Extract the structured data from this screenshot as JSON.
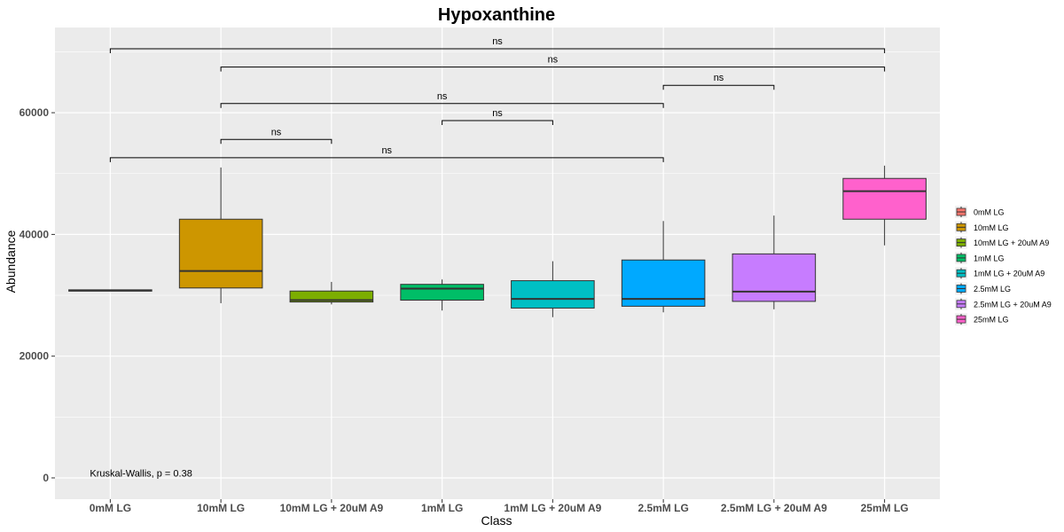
{
  "chart_data": {
    "type": "box",
    "title": "Hypoxanthine",
    "xlabel": "Class",
    "ylabel": "Abundance",
    "ylim": [
      -3500,
      74000
    ],
    "yticks": [
      0,
      20000,
      40000,
      60000
    ],
    "ytick_labels": [
      "0",
      "20000",
      "40000",
      "60000"
    ],
    "categories": [
      "0mM LG",
      "10mM LG",
      "10mM LG + 20uM A9",
      "1mM LG",
      "1mM LG + 20uM A9",
      "2.5mM LG",
      "2.5mM LG + 20uM A9",
      "25mM LG"
    ],
    "series": [
      {
        "name": "0mM LG",
        "color": "#F8766D",
        "min": 30700,
        "q1": 30700,
        "median": 30800,
        "q3": 30900,
        "max": 30900
      },
      {
        "name": "10mM LG",
        "color": "#CD9600",
        "min": 28700,
        "q1": 31200,
        "median": 34000,
        "q3": 42500,
        "max": 51000
      },
      {
        "name": "10mM LG + 20uM A9",
        "color": "#7CAE00",
        "min": 28500,
        "q1": 28900,
        "median": 29200,
        "q3": 30700,
        "max": 32200
      },
      {
        "name": "1mM LG",
        "color": "#00BE67",
        "min": 27500,
        "q1": 29200,
        "median": 31100,
        "q3": 31800,
        "max": 32600
      },
      {
        "name": "1mM LG + 20uM A9",
        "color": "#00BFC4",
        "min": 26400,
        "q1": 27900,
        "median": 29400,
        "q3": 32400,
        "max": 35600
      },
      {
        "name": "2.5mM LG",
        "color": "#00A9FF",
        "min": 27200,
        "q1": 28200,
        "median": 29400,
        "q3": 35800,
        "max": 42200
      },
      {
        "name": "2.5mM LG + 20uM A9",
        "color": "#C77CFF",
        "min": 27700,
        "q1": 29000,
        "median": 30600,
        "q3": 36800,
        "max": 43100
      },
      {
        "name": "25mM LG",
        "color": "#FF61CC",
        "min": 38200,
        "q1": 42500,
        "median": 47100,
        "q3": 49200,
        "max": 51300
      }
    ],
    "comparisons": [
      {
        "from": 0,
        "to": 7,
        "y": 70500,
        "label": "ns"
      },
      {
        "from": 1,
        "to": 7,
        "y": 67500,
        "label": "ns"
      },
      {
        "from": 5,
        "to": 6,
        "y": 64500,
        "label": "ns"
      },
      {
        "from": 1,
        "to": 5,
        "y": 61500,
        "label": "ns"
      },
      {
        "from": 3,
        "to": 4,
        "y": 58700,
        "label": "ns"
      },
      {
        "from": 1,
        "to": 2,
        "y": 55600,
        "label": "ns"
      },
      {
        "from": 0,
        "to": 5,
        "y": 52600,
        "label": "ns"
      }
    ],
    "annotation": {
      "text": "Kruskal-Wallis, p = 0.38",
      "x": 0,
      "y": 500
    },
    "grid": true,
    "legend_position": "right",
    "panel_background": "#EBEBEB"
  }
}
